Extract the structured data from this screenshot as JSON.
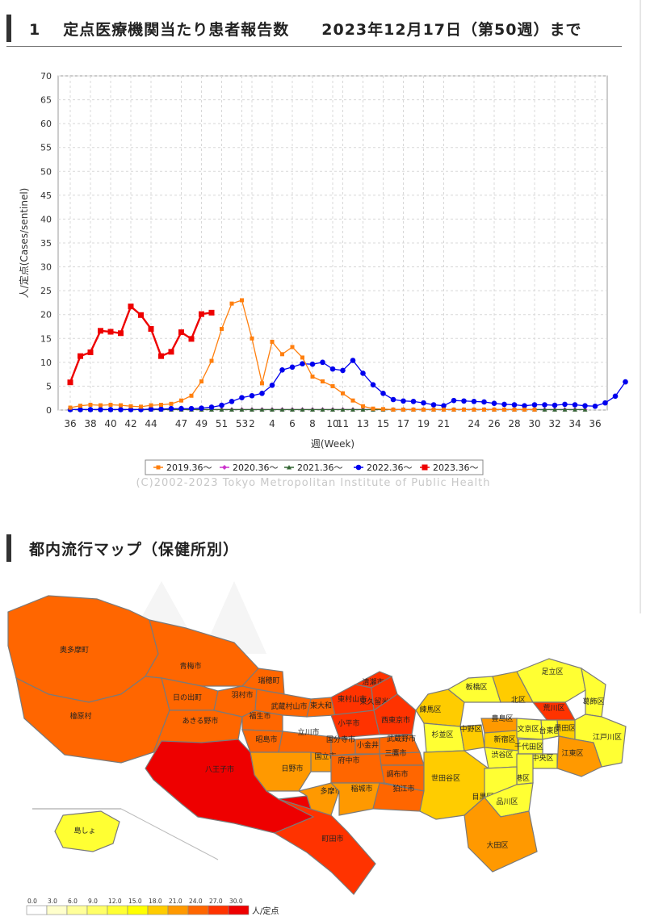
{
  "header1": {
    "number": "1",
    "title": "定点医療機関当たり患者報告数",
    "date": "2023年12月17日（第50週）まで"
  },
  "header2": {
    "title": "都内流行マップ（保健所別）"
  },
  "chart_data": {
    "type": "line",
    "ylabel": "人/定点(Cases/sentinel)",
    "xlabel": "週(Week)",
    "ylim": [
      0,
      70
    ],
    "yticks": [
      0,
      5,
      10,
      15,
      20,
      25,
      30,
      35,
      40,
      45,
      50,
      55,
      60,
      65,
      70
    ],
    "xticks": [
      "36",
      "38",
      "40",
      "42",
      "44",
      "47",
      "49",
      "51",
      "53",
      "2",
      "4",
      "6",
      "8",
      "10",
      "11",
      "13",
      "15",
      "17",
      "19",
      "21",
      "24",
      "26",
      "28",
      "30",
      "32",
      "34",
      "36"
    ],
    "xtick_index": [
      0,
      2,
      4,
      6,
      8,
      11,
      13,
      15,
      17,
      18,
      20,
      22,
      24,
      26,
      27,
      29,
      31,
      33,
      35,
      37,
      40,
      42,
      44,
      46,
      48,
      50,
      52
    ],
    "grid": true,
    "legend_position": "bottom",
    "copyright": "(C)2002-2023 Tokyo Metropolitan Institute of Public Health",
    "series": [
      {
        "name": "2019.36～",
        "color": "#ff7f0e",
        "marker": "square-small",
        "values": [
          0.5,
          0.9,
          1.1,
          1.0,
          1.1,
          1.0,
          0.8,
          0.7,
          1.0,
          1.1,
          1.3,
          2.0,
          3.0,
          6.0,
          10.3,
          17.0,
          22.3,
          23.0,
          15.0,
          5.6,
          14.3,
          11.7,
          13.2,
          11.0,
          7.0,
          6.0,
          5.0,
          3.5,
          2.0,
          0.8,
          0.3,
          0.2,
          0.1,
          0.1,
          0.1,
          0.1,
          0.1,
          0.1,
          0.1,
          0.1,
          0.1,
          0.1,
          0.1,
          0.1,
          0.1,
          0.1,
          0.1
        ]
      },
      {
        "name": "2020.36～",
        "color": "#cc33cc",
        "marker": "diamond",
        "values": [
          0.1,
          0.1,
          0.1,
          0.1,
          0.1,
          0.1,
          0.1,
          0.1,
          0.1,
          0.1,
          0.1,
          0.1,
          0.1,
          0.1,
          0.1,
          0.1,
          0.1,
          0.1,
          0.1,
          0.1,
          0.1,
          0.1,
          0.1,
          0.1,
          0.1,
          0.1,
          0.1,
          0.1,
          0.1,
          0.1,
          0.1,
          0.1,
          0.1,
          0.1,
          0.1,
          0.1,
          0.1,
          0.1,
          0.1,
          0.1,
          0.1,
          0.1,
          0.1,
          0.1,
          0.1,
          0.1,
          0.1,
          0.1,
          0.1,
          0.1,
          0.1,
          0.1
        ]
      },
      {
        "name": "2021.36～",
        "color": "#336633",
        "marker": "triangle",
        "values": [
          0.1,
          0.1,
          0.1,
          0.1,
          0.1,
          0.1,
          0.1,
          0.1,
          0.1,
          0.1,
          0.1,
          0.1,
          0.1,
          0.1,
          0.1,
          0.1,
          0.1,
          0.1,
          0.1,
          0.1,
          0.1,
          0.1,
          0.1,
          0.1,
          0.1,
          0.1,
          0.1,
          0.1,
          0.1,
          0.1,
          0.1,
          0.1,
          0.1,
          0.1,
          0.1,
          0.1,
          0.1,
          0.1,
          0.1,
          0.1,
          0.1,
          0.1,
          0.1,
          0.1,
          0.1,
          0.1,
          0.1,
          0.1,
          0.1,
          0.1,
          0.1,
          0.1
        ]
      },
      {
        "name": "2022.36～",
        "color": "#0000ee",
        "marker": "circle",
        "values": [
          0.1,
          0.1,
          0.1,
          0.1,
          0.1,
          0.1,
          0.1,
          0.1,
          0.2,
          0.2,
          0.3,
          0.3,
          0.3,
          0.4,
          0.6,
          1.0,
          1.8,
          2.6,
          3.0,
          3.5,
          5.2,
          8.4,
          9.0,
          9.7,
          9.6,
          10.0,
          8.6,
          8.3,
          10.4,
          7.7,
          5.3,
          3.5,
          2.2,
          1.9,
          1.8,
          1.5,
          1.1,
          0.9,
          2.0,
          1.9,
          1.8,
          1.7,
          1.4,
          1.2,
          1.1,
          0.9,
          1.1,
          1.1,
          1.0,
          1.2,
          1.1,
          0.9,
          0.8,
          1.5,
          2.9,
          5.9
        ]
      },
      {
        "name": "2023.36～",
        "color": "#ee0000",
        "marker": "square",
        "values": [
          5.8,
          11.3,
          12.1,
          16.6,
          16.4,
          16.1,
          21.7,
          19.9,
          17.0,
          11.3,
          12.2,
          16.3,
          14.9,
          20.1,
          20.4
        ]
      }
    ]
  },
  "map": {
    "legend_ticks": [
      "0.0",
      "3.0",
      "6.0",
      "9.0",
      "12.0",
      "15.0",
      "18.0",
      "21.0",
      "24.0",
      "27.0",
      "30.0"
    ],
    "legend_colors": [
      "#ffffff",
      "#ffffcc",
      "#ffff99",
      "#ffff66",
      "#ffff33",
      "#ffff00",
      "#ffcc00",
      "#ff9900",
      "#ff6600",
      "#ff3300",
      "#ee0000"
    ],
    "legend_unit": "人/定点",
    "regions": [
      {
        "name": "奥多摩町",
        "color": "#ff6600"
      },
      {
        "name": "青梅市",
        "color": "#ff6600"
      },
      {
        "name": "檜原村",
        "color": "#ff6600"
      },
      {
        "name": "日の出町",
        "color": "#ff6600"
      },
      {
        "name": "あきる野市",
        "color": "#ff6600"
      },
      {
        "name": "羽村市",
        "color": "#ff6600"
      },
      {
        "name": "瑞穂町",
        "color": "#ff6600"
      },
      {
        "name": "福生市",
        "color": "#ff6600"
      },
      {
        "name": "武蔵村山市",
        "color": "#ff6600"
      },
      {
        "name": "東大和市",
        "color": "#ff6600"
      },
      {
        "name": "東村山市",
        "color": "#ff3300"
      },
      {
        "name": "清瀬市",
        "color": "#ff3300"
      },
      {
        "name": "東久留米市",
        "color": "#ff3300"
      },
      {
        "name": "小平市",
        "color": "#ff3300"
      },
      {
        "name": "西東京市",
        "color": "#ff3300"
      },
      {
        "name": "昭島市",
        "color": "#ff6600"
      },
      {
        "name": "立川市",
        "color": "#ff6600"
      },
      {
        "name": "国分寺市",
        "color": "#ff6600"
      },
      {
        "name": "小金井市",
        "color": "#ff6600"
      },
      {
        "name": "武蔵野市",
        "color": "#ff6600"
      },
      {
        "name": "三鷹市",
        "color": "#ff6600"
      },
      {
        "name": "国立市",
        "color": "#ff9900"
      },
      {
        "name": "府中市",
        "color": "#ff6600"
      },
      {
        "name": "日野市",
        "color": "#ff9900"
      },
      {
        "name": "八王子市",
        "color": "#ee0000"
      },
      {
        "name": "多摩市",
        "color": "#ff9900"
      },
      {
        "name": "稲城市",
        "color": "#ff9900"
      },
      {
        "name": "調布市",
        "color": "#ff6600"
      },
      {
        "name": "狛江市",
        "color": "#ff6600"
      },
      {
        "name": "町田市",
        "color": "#ff3300"
      },
      {
        "name": "島しょ",
        "color": "#ffff33"
      },
      {
        "name": "練馬区",
        "color": "#ffcc00"
      },
      {
        "name": "板橋区",
        "color": "#ffff33"
      },
      {
        "name": "北区",
        "color": "#ffcc00"
      },
      {
        "name": "足立区",
        "color": "#ffff33"
      },
      {
        "name": "葛飾区",
        "color": "#ffff33"
      },
      {
        "name": "荒川区",
        "color": "#ff3300"
      },
      {
        "name": "杉並区",
        "color": "#ffff33"
      },
      {
        "name": "中野区",
        "color": "#ffcc00"
      },
      {
        "name": "豊島区",
        "color": "#ff9900"
      },
      {
        "name": "新宿区",
        "color": "#ffcc00"
      },
      {
        "name": "文京区",
        "color": "#ffff33"
      },
      {
        "name": "台東区",
        "color": "#ffff33"
      },
      {
        "name": "墨田区",
        "color": "#ffcc00"
      },
      {
        "name": "江戸川区",
        "color": "#ffff33"
      },
      {
        "name": "千代田区",
        "color": "#ffff33"
      },
      {
        "name": "中央区",
        "color": "#ffff33"
      },
      {
        "name": "江東区",
        "color": "#ff9900"
      },
      {
        "name": "渋谷区",
        "color": "#ffff33"
      },
      {
        "name": "港区",
        "color": "#ffff33"
      },
      {
        "name": "世田谷区",
        "color": "#ffcc00"
      },
      {
        "name": "目黒区",
        "color": "#ffff33"
      },
      {
        "name": "品川区",
        "color": "#ffff33"
      },
      {
        "name": "大田区",
        "color": "#ff9900"
      }
    ]
  }
}
